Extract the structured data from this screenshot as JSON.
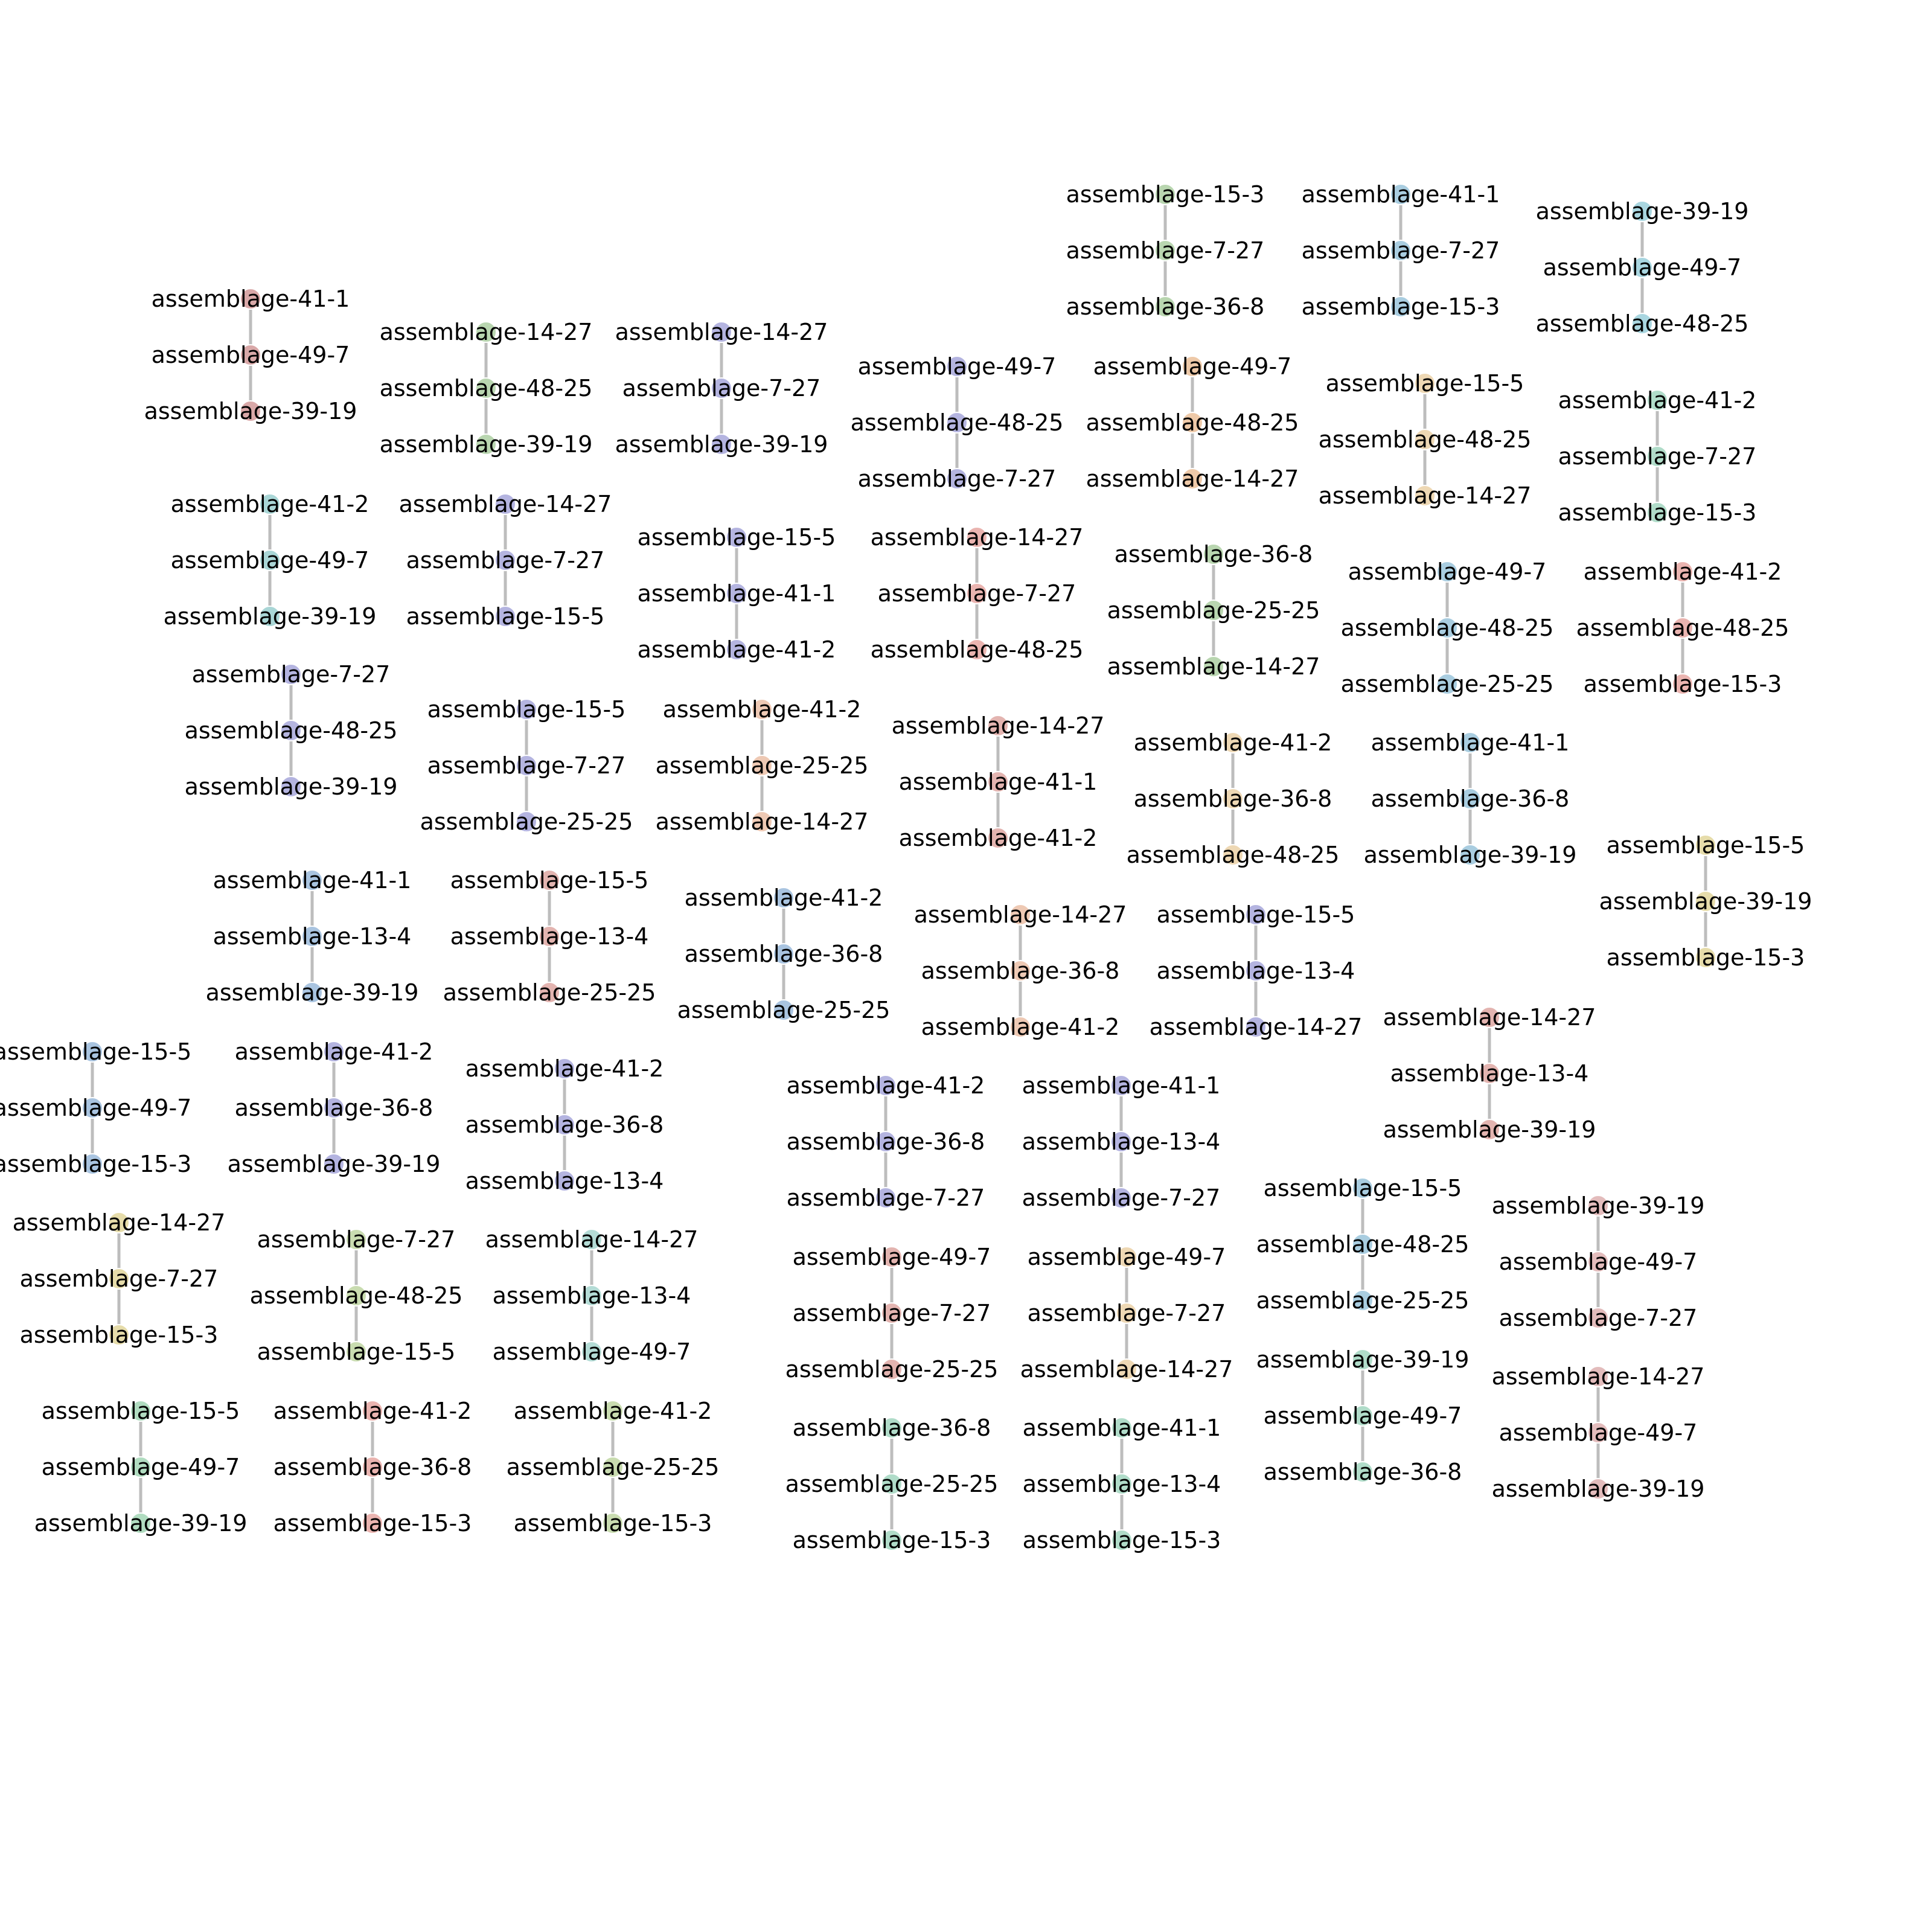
{
  "diagram": {
    "type": "network-graph",
    "components": [
      {
        "color": "#d9a8a8",
        "nodes": [
          "assemblage-41-1",
          "assemblage-49-7",
          "assemblage-39-19"
        ]
      },
      {
        "color": "#b9d6b0",
        "nodes": [
          "assemblage-14-27",
          "assemblage-48-25",
          "assemblage-39-19"
        ]
      },
      {
        "color": "#b4b4e0",
        "nodes": [
          "assemblage-14-27",
          "assemblage-7-27",
          "assemblage-39-19"
        ]
      },
      {
        "color": "#b4b4e0",
        "nodes": [
          "assemblage-49-7",
          "assemblage-48-25",
          "assemblage-7-27"
        ]
      },
      {
        "color": "#eec9a8",
        "nodes": [
          "assemblage-49-7",
          "assemblage-48-25",
          "assemblage-14-27"
        ]
      },
      {
        "color": "#b9d6b0",
        "nodes": [
          "assemblage-15-3",
          "assemblage-7-27",
          "assemblage-36-8"
        ]
      },
      {
        "color": "#a9cde0",
        "nodes": [
          "assemblage-41-1",
          "assemblage-7-27",
          "assemblage-15-3"
        ]
      },
      {
        "color": "#a9d6e0",
        "nodes": [
          "assemblage-39-19",
          "assemblage-49-7",
          "assemblage-48-25"
        ]
      },
      {
        "color": "#eed8b4",
        "nodes": [
          "assemblage-15-5",
          "assemblage-48-25",
          "assemblage-14-27"
        ]
      },
      {
        "color": "#b0dcc9",
        "nodes": [
          "assemblage-41-2",
          "assemblage-7-27",
          "assemblage-15-3"
        ]
      },
      {
        "color": "#a9d6d6",
        "nodes": [
          "assemblage-41-2",
          "assemblage-49-7",
          "assemblage-39-19"
        ]
      },
      {
        "color": "#b4b4e0",
        "nodes": [
          "assemblage-14-27",
          "assemblage-7-27",
          "assemblage-15-5"
        ]
      },
      {
        "color": "#b4b4e0",
        "nodes": [
          "assemblage-15-5",
          "assemblage-41-1",
          "assemblage-41-2"
        ]
      },
      {
        "color": "#eab4b0",
        "nodes": [
          "assemblage-14-27",
          "assemblage-7-27",
          "assemblage-48-25"
        ]
      },
      {
        "color": "#b9d6b0",
        "nodes": [
          "assemblage-36-8",
          "assemblage-25-25",
          "assemblage-14-27"
        ]
      },
      {
        "color": "#a9cde0",
        "nodes": [
          "assemblage-49-7",
          "assemblage-48-25",
          "assemblage-25-25"
        ]
      },
      {
        "color": "#eab4b0",
        "nodes": [
          "assemblage-41-2",
          "assemblage-48-25",
          "assemblage-15-3"
        ]
      },
      {
        "color": "#b4b4e0",
        "nodes": [
          "assemblage-7-27",
          "assemblage-48-25",
          "assemblage-39-19"
        ]
      },
      {
        "color": "#b4b4e0",
        "nodes": [
          "assemblage-15-5",
          "assemblage-7-27",
          "assemblage-25-25"
        ]
      },
      {
        "color": "#eec9b4",
        "nodes": [
          "assemblage-41-2",
          "assemblage-25-25",
          "assemblage-14-27"
        ]
      },
      {
        "color": "#e3b4b0",
        "nodes": [
          "assemblage-14-27",
          "assemblage-41-1",
          "assemblage-41-2"
        ]
      },
      {
        "color": "#eed8b4",
        "nodes": [
          "assemblage-41-2",
          "assemblage-36-8",
          "assemblage-48-25"
        ]
      },
      {
        "color": "#a9cde0",
        "nodes": [
          "assemblage-41-1",
          "assemblage-36-8",
          "assemblage-39-19"
        ]
      },
      {
        "color": "#e6dcaa",
        "nodes": [
          "assemblage-15-5",
          "assemblage-39-19",
          "assemblage-15-3"
        ]
      },
      {
        "color": "#a9c4e0",
        "nodes": [
          "assemblage-41-1",
          "assemblage-13-4",
          "assemblage-39-19"
        ]
      },
      {
        "color": "#e3b4b0",
        "nodes": [
          "assemblage-15-5",
          "assemblage-13-4",
          "assemblage-25-25"
        ]
      },
      {
        "color": "#a9c4e0",
        "nodes": [
          "assemblage-41-2",
          "assemblage-36-8",
          "assemblage-25-25"
        ]
      },
      {
        "color": "#eec9b4",
        "nodes": [
          "assemblage-14-27",
          "assemblage-36-8",
          "assemblage-41-2"
        ]
      },
      {
        "color": "#b4b4e0",
        "nodes": [
          "assemblage-15-5",
          "assemblage-13-4",
          "assemblage-14-27"
        ]
      },
      {
        "color": "#e3b4b0",
        "nodes": [
          "assemblage-14-27",
          "assemblage-13-4",
          "assemblage-39-19"
        ]
      },
      {
        "color": "#a9c4e0",
        "nodes": [
          "assemblage-15-5",
          "assemblage-49-7",
          "assemblage-15-3"
        ]
      },
      {
        "color": "#b4b4e0",
        "nodes": [
          "assemblage-41-2",
          "assemblage-36-8",
          "assemblage-39-19"
        ]
      },
      {
        "color": "#b4b4e0",
        "nodes": [
          "assemblage-41-2",
          "assemblage-36-8",
          "assemblage-13-4"
        ]
      },
      {
        "color": "#b4b4e0",
        "nodes": [
          "assemblage-41-2",
          "assemblage-36-8",
          "assemblage-7-27"
        ]
      },
      {
        "color": "#b4b4e0",
        "nodes": [
          "assemblage-41-1",
          "assemblage-13-4",
          "assemblage-7-27"
        ]
      },
      {
        "color": "#a9cde0",
        "nodes": [
          "assemblage-15-5",
          "assemblage-48-25",
          "assemblage-25-25"
        ]
      },
      {
        "color": "#e3bcbc",
        "nodes": [
          "assemblage-39-19",
          "assemblage-49-7",
          "assemblage-7-27"
        ]
      },
      {
        "color": "#e6dcaa",
        "nodes": [
          "assemblage-14-27",
          "assemblage-7-27",
          "assemblage-15-3"
        ]
      },
      {
        "color": "#c9dcb0",
        "nodes": [
          "assemblage-7-27",
          "assemblage-48-25",
          "assemblage-15-5"
        ]
      },
      {
        "color": "#b4dcd6",
        "nodes": [
          "assemblage-14-27",
          "assemblage-13-4",
          "assemblage-49-7"
        ]
      },
      {
        "color": "#e3b4b0",
        "nodes": [
          "assemblage-49-7",
          "assemblage-7-27",
          "assemblage-25-25"
        ]
      },
      {
        "color": "#eed8b4",
        "nodes": [
          "assemblage-49-7",
          "assemblage-7-27",
          "assemblage-14-27"
        ]
      },
      {
        "color": "#b0dcc9",
        "nodes": [
          "assemblage-39-19",
          "assemblage-49-7",
          "assemblage-36-8"
        ]
      },
      {
        "color": "#e3bcbc",
        "nodes": [
          "assemblage-14-27",
          "assemblage-49-7",
          "assemblage-39-19"
        ]
      },
      {
        "color": "#b0dcc0",
        "nodes": [
          "assemblage-15-5",
          "assemblage-49-7",
          "assemblage-39-19"
        ]
      },
      {
        "color": "#eab4b0",
        "nodes": [
          "assemblage-41-2",
          "assemblage-36-8",
          "assemblage-15-3"
        ]
      },
      {
        "color": "#c9dcb0",
        "nodes": [
          "assemblage-41-2",
          "assemblage-25-25",
          "assemblage-15-3"
        ]
      },
      {
        "color": "#b0dcc9",
        "nodes": [
          "assemblage-36-8",
          "assemblage-25-25",
          "assemblage-15-3"
        ]
      },
      {
        "color": "#b0dcc9",
        "nodes": [
          "assemblage-41-1",
          "assemblage-13-4",
          "assemblage-15-3"
        ]
      }
    ]
  }
}
